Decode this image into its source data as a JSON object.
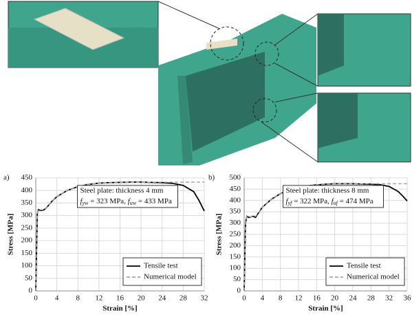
{
  "chart_data": [
    {
      "type": "line",
      "panel_label": "a)",
      "x_label": "Strain [%]",
      "y_label": "Stress [MPa]",
      "annotation": {
        "line1": "Steel plate: thickness 4 mm",
        "line2": [
          "f",
          "yw",
          " = 323 MPa, ",
          "f",
          "uw",
          " = 433 MPa"
        ]
      },
      "x": [
        0,
        0.3,
        0.5,
        1,
        1.5,
        2,
        3,
        4,
        6,
        8,
        10,
        12,
        14,
        16,
        18,
        20,
        22,
        24,
        26,
        28,
        30,
        31,
        32
      ],
      "series": [
        {
          "name": "Tensile test",
          "color": "#000000",
          "dash": false,
          "values": [
            0,
            310,
            323,
            320,
            322,
            330,
            355,
            375,
            400,
            415,
            424,
            429,
            431,
            432,
            433,
            433,
            432,
            431,
            428,
            420,
            395,
            360,
            318
          ]
        },
        {
          "name": "Numerical model",
          "color": "#a6a6a6",
          "dash": true,
          "values": [
            0,
            310,
            323,
            323,
            323,
            330,
            355,
            375,
            400,
            415,
            424,
            429,
            431,
            432,
            433,
            433,
            433,
            433,
            433,
            433,
            433,
            433,
            433
          ]
        }
      ],
      "xlim": [
        0,
        32
      ],
      "xticks": [
        0,
        4,
        8,
        12,
        16,
        20,
        24,
        28,
        32
      ],
      "ylim": [
        0,
        450
      ],
      "yticks": [
        0,
        50,
        100,
        150,
        200,
        250,
        300,
        350,
        400,
        450
      ],
      "grid": true,
      "legend": "lower right"
    },
    {
      "type": "line",
      "panel_label": "b)",
      "x_label": "Strain [%]",
      "y_label": "Stress [MPa]",
      "annotation": {
        "line1": "Steel plate: thickness 8 mm",
        "line2": [
          "f",
          "yf",
          " = 322 MPa, ",
          "f",
          "uf",
          " = 474 MPa"
        ]
      },
      "x": [
        0,
        0.3,
        0.6,
        1,
        2,
        2.5,
        3,
        4,
        6,
        8,
        10,
        12,
        14,
        16,
        18,
        20,
        22,
        24,
        26,
        28,
        30,
        32,
        34,
        35,
        36
      ],
      "series": [
        {
          "name": "Tensile test",
          "color": "#000000",
          "dash": false,
          "values": [
            0,
            300,
            330,
            325,
            330,
            325,
            340,
            370,
            405,
            430,
            448,
            458,
            465,
            469,
            472,
            474,
            474,
            474,
            473,
            472,
            470,
            462,
            440,
            420,
            398
          ]
        },
        {
          "name": "Numerical model",
          "color": "#a6a6a6",
          "dash": true,
          "values": [
            0,
            300,
            330,
            328,
            328,
            330,
            342,
            370,
            405,
            430,
            448,
            458,
            465,
            469,
            472,
            474,
            474,
            474,
            474,
            474,
            474,
            474,
            474,
            474,
            474
          ]
        }
      ],
      "xlim": [
        0,
        36
      ],
      "xticks": [
        0,
        4,
        8,
        12,
        16,
        20,
        24,
        28,
        32,
        36
      ],
      "ylim": [
        0,
        500
      ],
      "yticks": [
        0,
        50,
        100,
        150,
        200,
        250,
        300,
        350,
        400,
        450,
        500
      ],
      "grid": true,
      "legend": "lower right"
    }
  ]
}
